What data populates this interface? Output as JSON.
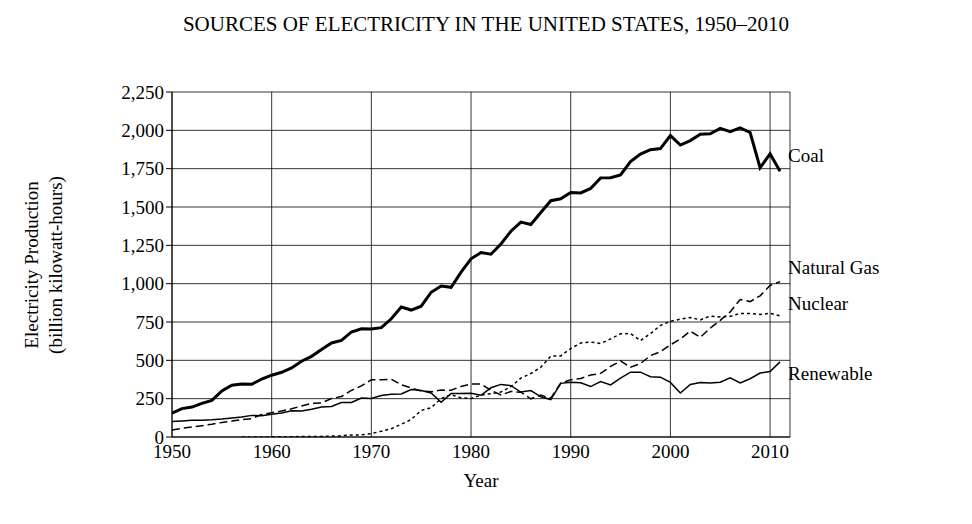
{
  "chart_data": {
    "type": "line",
    "title": "SOURCES OF ELECTRICITY IN THE UNITED STATES, 1950–2010",
    "x_label": "Year",
    "y_label": [
      "Electricity Production",
      "(billion kilowatt-hours)"
    ],
    "x": [
      1950,
      1951,
      1952,
      1953,
      1954,
      1955,
      1956,
      1957,
      1958,
      1959,
      1960,
      1961,
      1962,
      1963,
      1964,
      1965,
      1966,
      1967,
      1968,
      1969,
      1970,
      1971,
      1972,
      1973,
      1974,
      1975,
      1976,
      1977,
      1978,
      1979,
      1980,
      1981,
      1982,
      1983,
      1984,
      1985,
      1986,
      1987,
      1988,
      1989,
      1990,
      1991,
      1992,
      1993,
      1994,
      1995,
      1996,
      1997,
      1998,
      1999,
      2000,
      2001,
      2002,
      2003,
      2004,
      2005,
      2006,
      2007,
      2008,
      2009,
      2010,
      2011
    ],
    "series": [
      {
        "name": "Coal",
        "color": "#000000",
        "line_style": "solid",
        "values": [
          155,
          185,
          195,
          219,
          239,
          301,
          338,
          346,
          344,
          378,
          403,
          422,
          450,
          494,
          526,
          571,
          613,
          630,
          685,
          706,
          704,
          713,
          771,
          848,
          828,
          853,
          944,
          985,
          976,
          1075,
          1162,
          1203,
          1192,
          1259,
          1342,
          1402,
          1386,
          1464,
          1541,
          1554,
          1594,
          1592,
          1621,
          1690,
          1691,
          1709,
          1796,
          1845,
          1874,
          1881,
          1966,
          1904,
          1933,
          1974,
          1978,
          2013,
          1991,
          2016,
          1986,
          1756,
          1847,
          1733
        ]
      },
      {
        "name": "Natural Gas",
        "color": "#000000",
        "line_style": "dashed",
        "values": [
          45,
          57,
          65,
          74,
          83,
          95,
          104,
          114,
          120,
          147,
          158,
          169,
          184,
          202,
          220,
          222,
          251,
          264,
          304,
          333,
          373,
          374,
          376,
          341,
          320,
          300,
          295,
          306,
          305,
          330,
          346,
          346,
          305,
          274,
          297,
          292,
          249,
          273,
          253,
          352,
          373,
          382,
          404,
          415,
          460,
          496,
          455,
          479,
          531,
          556,
          601,
          639,
          691,
          650,
          710,
          761,
          816,
          897,
          883,
          921,
          988,
          1013
        ]
      },
      {
        "name": "Nuclear",
        "color": "#000000",
        "line_style": "dotted",
        "values": [
          null,
          null,
          null,
          null,
          null,
          null,
          null,
          0,
          0,
          0,
          1,
          2,
          2,
          3,
          3,
          4,
          6,
          8,
          13,
          14,
          22,
          38,
          54,
          83,
          114,
          173,
          191,
          251,
          276,
          255,
          251,
          273,
          283,
          294,
          328,
          384,
          414,
          455,
          527,
          529,
          577,
          613,
          619,
          610,
          640,
          673,
          675,
          629,
          674,
          728,
          754,
          769,
          780,
          764,
          789,
          782,
          787,
          806,
          806,
          799,
          807,
          790
        ]
      },
      {
        "name": "Renewable",
        "color": "#000000",
        "line_style": "solid",
        "values": [
          101,
          105,
          110,
          109,
          112,
          117,
          124,
          130,
          141,
          138,
          149,
          156,
          171,
          169,
          181,
          196,
          199,
          225,
          225,
          254,
          251,
          270,
          279,
          281,
          309,
          303,
          287,
          226,
          284,
          283,
          285,
          272,
          321,
          343,
          335,
          293,
          303,
          262,
          244,
          350,
          357,
          354,
          329,
          361,
          340,
          384,
          423,
          423,
          393,
          390,
          356,
          287,
          343,
          356,
          352,
          357,
          386,
          353,
          380,
          417,
          427,
          490
        ]
      }
    ],
    "xlim": [
      1950,
      2012
    ],
    "xticks": [
      1950,
      1960,
      1970,
      1980,
      1990,
      2000,
      2010
    ],
    "ylim": [
      0,
      2250
    ],
    "yticks": [
      0,
      250,
      500,
      750,
      {
        "value": 1000,
        "label": "1,000"
      },
      {
        "value": 1250,
        "label": "1,250"
      },
      {
        "value": 1500,
        "label": "1,500"
      },
      {
        "value": 1750,
        "label": "1,750"
      },
      {
        "value": 2000,
        "label": "2,000"
      },
      {
        "value": 2250,
        "label": "2,250"
      }
    ],
    "grid": true
  }
}
